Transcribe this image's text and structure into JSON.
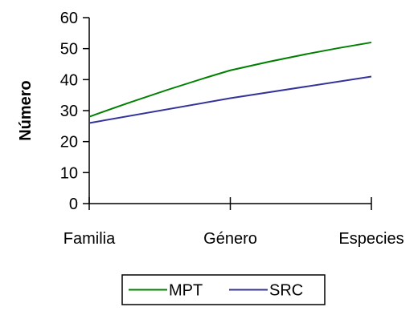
{
  "chart_data": {
    "type": "line",
    "categories": [
      "Familia",
      "Género",
      "Especies"
    ],
    "series": [
      {
        "name": "MPT",
        "values": [
          28,
          43,
          52
        ],
        "color": "#008000"
      },
      {
        "name": "SRC",
        "values": [
          26,
          34,
          41
        ],
        "color": "#333399"
      }
    ],
    "title": "",
    "xlabel": "",
    "ylabel": "Número",
    "ylim": [
      0,
      60
    ],
    "yticks": [
      0,
      10,
      20,
      30,
      40,
      50,
      60
    ],
    "grid": false,
    "legend_position": "bottom"
  }
}
